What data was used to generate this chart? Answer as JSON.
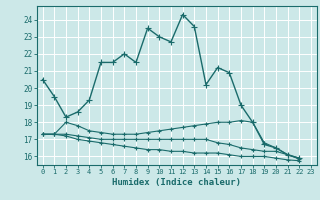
{
  "xlabel": "Humidex (Indice chaleur)",
  "bg_color": "#cce8e8",
  "line_color": "#1a6b6b",
  "grid_color": "#ffffff",
  "xlim": [
    -0.5,
    23.5
  ],
  "ylim": [
    15.5,
    24.8
  ],
  "yticks": [
    16,
    17,
    18,
    19,
    20,
    21,
    22,
    23,
    24
  ],
  "xticks": [
    0,
    1,
    2,
    3,
    4,
    5,
    6,
    7,
    8,
    9,
    10,
    11,
    12,
    13,
    14,
    15,
    16,
    17,
    18,
    19,
    20,
    21,
    22,
    23
  ],
  "series": [
    [
      20.5,
      19.5,
      18.3,
      18.6,
      19.3,
      21.5,
      21.5,
      22.0,
      21.5,
      23.5,
      23.0,
      22.7,
      24.3,
      23.6,
      20.2,
      21.2,
      20.9,
      19.0,
      18.0,
      16.7,
      16.5,
      16.1,
      15.9
    ],
    [
      17.3,
      17.3,
      18.0,
      17.8,
      17.5,
      17.4,
      17.3,
      17.3,
      17.3,
      17.4,
      17.5,
      17.6,
      17.7,
      17.8,
      17.9,
      18.0,
      18.0,
      18.1,
      18.0,
      16.8,
      16.5,
      16.1,
      15.9
    ],
    [
      17.3,
      17.3,
      17.3,
      17.2,
      17.1,
      17.0,
      17.0,
      17.0,
      17.0,
      17.0,
      17.0,
      17.0,
      17.0,
      17.0,
      17.0,
      16.8,
      16.7,
      16.5,
      16.4,
      16.3,
      16.3,
      16.1,
      15.85
    ],
    [
      17.3,
      17.3,
      17.2,
      17.0,
      16.9,
      16.8,
      16.7,
      16.6,
      16.5,
      16.4,
      16.4,
      16.3,
      16.3,
      16.2,
      16.2,
      16.2,
      16.1,
      16.0,
      16.0,
      16.0,
      15.9,
      15.8,
      15.75
    ]
  ]
}
